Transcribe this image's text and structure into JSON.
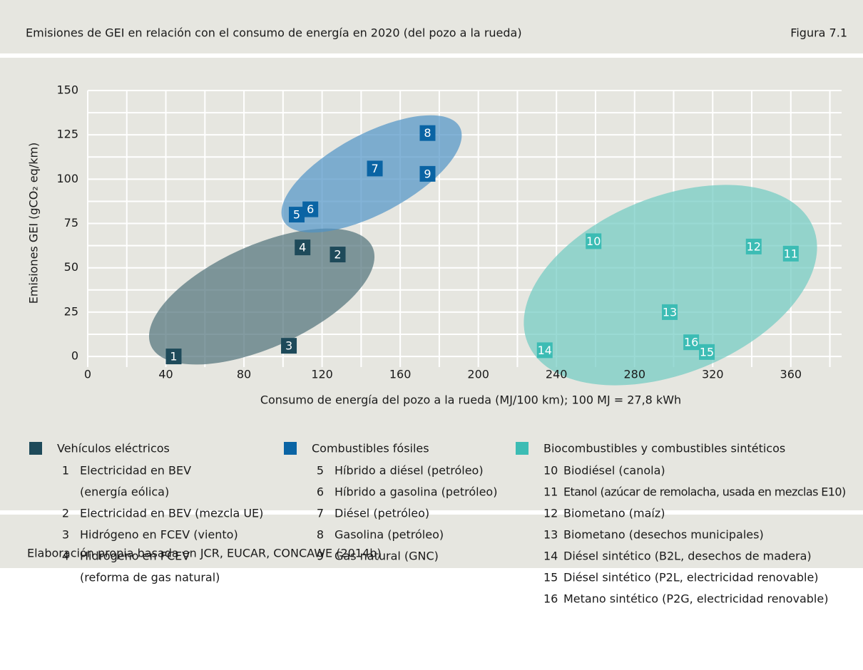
{
  "chart_data": {
    "type": "scatter",
    "title": "Emisiones de GEI en relación con el consumo de energía en 2020 (del pozo a la rueda)",
    "figure": "Figura 7.1",
    "xlabel": "Consumo de energía del pozo a la rueda (MJ/100 km); 100 MJ = 27,8 kWh",
    "ylabel": "Emisiones GEI (gCO₂ eq/km)",
    "source": "Elaboración propia basada en JCR, EUCAR, CONCAWE (2014b)",
    "xlim": [
      0,
      386
    ],
    "ylim": [
      -6,
      150
    ],
    "xticks": [
      0,
      40,
      80,
      120,
      160,
      200,
      240,
      280,
      320,
      360
    ],
    "yticks": [
      0,
      25,
      50,
      75,
      100,
      125,
      150
    ],
    "grid": true,
    "series": [
      {
        "name": "Vehículos eléctricos",
        "color": "#1e4a5a",
        "labels": [
          "1",
          "2",
          "3",
          "4"
        ],
        "x": [
          44,
          128,
          103,
          110
        ],
        "values": [
          0,
          57.5,
          6,
          61.5
        ],
        "items": [
          [
            "Electricidad en BEV",
            "(energía eólica)"
          ],
          [
            "Electricidad en BEV (mezcla UE)"
          ],
          [
            "Hidrógeno en FCEV (viento)"
          ],
          [
            "Hidrógeno en FCEV",
            "(reforma de gas natural)"
          ]
        ]
      },
      {
        "name": "Combustibles fósiles",
        "color": "#0a64a4",
        "labels": [
          "5",
          "6",
          "7",
          "8",
          "9"
        ],
        "x": [
          107,
          114,
          147,
          174,
          174
        ],
        "values": [
          80,
          83,
          106,
          126,
          103
        ],
        "items": [
          [
            "Híbrido a diésel (petróleo)"
          ],
          [
            "Híbrido a gasolina (petróleo)"
          ],
          [
            "Diésel (petróleo)"
          ],
          [
            "Gasolina (petróleo)"
          ],
          [
            "Gas natural (GNC)"
          ]
        ]
      },
      {
        "name": "Biocombustibles y combustibles sintéticos",
        "color": "#3cbcb4",
        "labels": [
          "10",
          "11",
          "12",
          "13",
          "14",
          "15",
          "16"
        ],
        "x": [
          259,
          360,
          341,
          298,
          234,
          317,
          309
        ],
        "values": [
          65,
          58,
          62,
          25,
          3.5,
          2.5,
          8
        ],
        "items": [
          [
            "Biodiésel (canola)"
          ],
          [
            "Etanol (azúcar de remolacha, usada en mezclas E10)"
          ],
          [
            "Biometano (maíz)"
          ],
          [
            "Biometano (desechos municipales)"
          ],
          [
            "Diésel sintético (B2L, desechos de madera)"
          ],
          [
            "Diésel sintético (P2L, electricidad renovable)"
          ],
          [
            "Metano sintético (P2G, electricidad renovable)"
          ]
        ]
      }
    ]
  }
}
